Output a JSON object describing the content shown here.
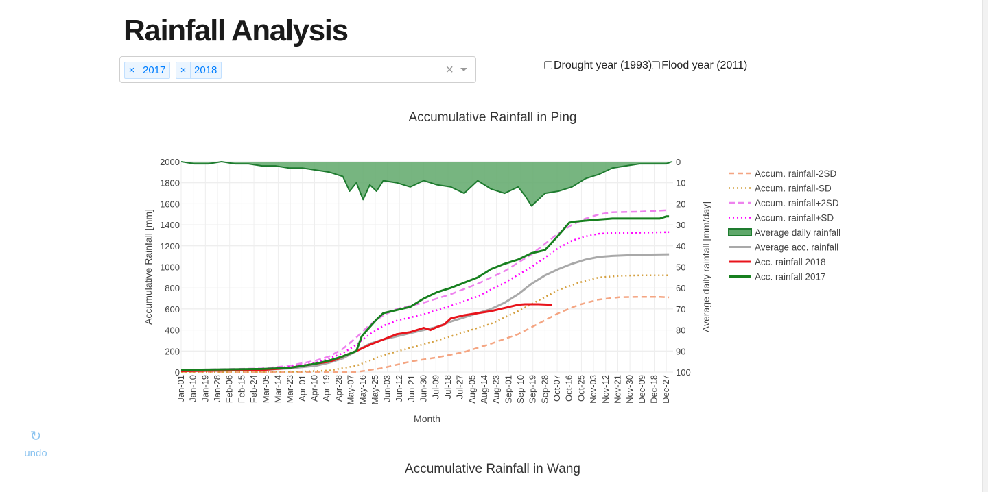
{
  "header": {
    "title": "Rainfall Analysis"
  },
  "year_select": {
    "tags": [
      {
        "remove": "×",
        "value": "2017"
      },
      {
        "remove": "×",
        "value": "2018"
      }
    ],
    "clear": "×"
  },
  "options": {
    "drought": "Drought year (1993)",
    "flood": "Flood year (2011)"
  },
  "undo": {
    "label": "undo",
    "icon": "undo-icon"
  },
  "second_chart": {
    "title": "Accumulative Rainfall in Wang"
  },
  "chart_data": {
    "type": "line",
    "title": "Accumulative Rainfall in Ping",
    "xlabel": "Month",
    "ylabel": "Accumulative Rainfall [mm]",
    "y2label": "Average daily rainfall [mm/day]",
    "ylim": [
      0,
      2000
    ],
    "y2lim": [
      100,
      0
    ],
    "y_ticks": [
      0,
      200,
      400,
      600,
      800,
      1000,
      1200,
      1400,
      1600,
      1800,
      2000
    ],
    "y2_ticks": [
      0,
      10,
      20,
      30,
      40,
      50,
      60,
      70,
      80,
      90,
      100
    ],
    "grid": true,
    "legend_position": "right",
    "x_ticks": [
      "Jan-01",
      "Jan-10",
      "Jan-19",
      "Jan-28",
      "Feb-06",
      "Feb-15",
      "Feb-24",
      "Mar-05",
      "Mar-14",
      "Mar-23",
      "Apr-01",
      "Apr-10",
      "Apr-19",
      "Apr-28",
      "May-07",
      "May-16",
      "May-25",
      "Jun-03",
      "Jun-12",
      "Jun-21",
      "Jun-30",
      "Jul-09",
      "Jul-18",
      "Jul-27",
      "Aug-05",
      "Aug-14",
      "Aug-23",
      "Sep-01",
      "Sep-10",
      "Sep-19",
      "Sep-28",
      "Oct-07",
      "Oct-16",
      "Oct-25",
      "Nov-03",
      "Nov-12",
      "Nov-21",
      "Nov-30",
      "Dec-09",
      "Dec-18",
      "Dec-27"
    ],
    "x_tick_days": [
      0,
      9,
      18,
      27,
      36,
      45,
      54,
      63,
      72,
      81,
      90,
      99,
      108,
      117,
      126,
      135,
      144,
      153,
      162,
      171,
      180,
      189,
      198,
      207,
      216,
      225,
      234,
      243,
      252,
      261,
      270,
      279,
      288,
      297,
      306,
      315,
      324,
      333,
      342,
      351,
      360
    ],
    "x_range_days": [
      0,
      365
    ],
    "series": [
      {
        "name": "Accum. rainfall-2SD",
        "color": "#f4a582",
        "dash": "8,5",
        "width": 2.5,
        "x": [
          0,
          110,
          130,
          150,
          170,
          190,
          210,
          230,
          250,
          265,
          280,
          295,
          310,
          325,
          340,
          355,
          362
        ],
        "y": [
          0,
          0,
          0,
          40,
          100,
          140,
          190,
          270,
          360,
          460,
          560,
          640,
          690,
          712,
          715,
          715,
          710
        ]
      },
      {
        "name": "Accum. rainfall-SD",
        "color": "#d4a040",
        "dash": "2,4",
        "width": 2.5,
        "x": [
          0,
          90,
          110,
          130,
          150,
          170,
          190,
          210,
          230,
          250,
          265,
          280,
          295,
          310,
          325,
          340,
          355,
          362
        ],
        "y": [
          0,
          5,
          15,
          60,
          160,
          230,
          300,
          380,
          460,
          580,
          680,
          780,
          850,
          900,
          915,
          920,
          920,
          920
        ]
      },
      {
        "name": "Accum. rainfall+2SD",
        "color": "#ee82ee",
        "dash": "9,5",
        "width": 2.5,
        "x": [
          0,
          60,
          80,
          100,
          110,
          120,
          130,
          140,
          150,
          160,
          180,
          200,
          220,
          240,
          260,
          270,
          280,
          290,
          300,
          310,
          320,
          340,
          362
        ],
        "y": [
          20,
          35,
          60,
          110,
          150,
          220,
          330,
          450,
          540,
          600,
          660,
          740,
          840,
          960,
          1120,
          1220,
          1320,
          1400,
          1460,
          1500,
          1520,
          1525,
          1540
        ]
      },
      {
        "name": "Accum. rainfall+SD",
        "color": "#ff00ff",
        "dash": "2,4",
        "width": 2.5,
        "x": [
          0,
          60,
          80,
          100,
          110,
          120,
          130,
          140,
          150,
          160,
          180,
          200,
          220,
          240,
          260,
          270,
          280,
          290,
          300,
          310,
          320,
          340,
          362
        ],
        "y": [
          15,
          30,
          50,
          90,
          130,
          180,
          260,
          360,
          440,
          490,
          550,
          630,
          720,
          850,
          1000,
          1090,
          1180,
          1250,
          1290,
          1315,
          1322,
          1325,
          1330
        ]
      },
      {
        "name": "Average daily rainfall",
        "color": "#1e7b2f",
        "fill": "#5fa86a",
        "axis": "y2",
        "width": 2,
        "x": [
          0,
          10,
          20,
          30,
          40,
          50,
          60,
          70,
          80,
          90,
          100,
          110,
          120,
          125,
          130,
          135,
          140,
          145,
          150,
          160,
          170,
          180,
          190,
          200,
          210,
          220,
          230,
          240,
          250,
          255,
          260,
          270,
          280,
          290,
          300,
          310,
          320,
          330,
          340,
          350,
          360,
          364
        ],
        "y": [
          0,
          1,
          1,
          0,
          1,
          1,
          2,
          2,
          3,
          3,
          4,
          5,
          7,
          14,
          10,
          18,
          11,
          14,
          9,
          10,
          12,
          9,
          11,
          12,
          15,
          9,
          13,
          15,
          12,
          16,
          21,
          15,
          14,
          12,
          8,
          6,
          3,
          2,
          1,
          1,
          1,
          0
        ]
      },
      {
        "name": "Average acc. rainfall",
        "color": "#a9a9a9",
        "width": 3,
        "x": [
          0,
          60,
          80,
          100,
          110,
          120,
          130,
          140,
          150,
          160,
          170,
          180,
          190,
          200,
          210,
          220,
          230,
          240,
          250,
          260,
          270,
          280,
          290,
          300,
          310,
          320,
          340,
          362
        ],
        "y": [
          10,
          20,
          35,
          60,
          90,
          130,
          200,
          270,
          310,
          340,
          370,
          400,
          430,
          480,
          520,
          560,
          600,
          660,
          740,
          840,
          920,
          980,
          1030,
          1070,
          1095,
          1105,
          1115,
          1120
        ]
      },
      {
        "name": "Acc. rainfall 2018",
        "color": "#e8141c",
        "width": 3,
        "x": [
          0,
          60,
          80,
          100,
          110,
          115,
          120,
          130,
          140,
          150,
          160,
          170,
          180,
          185,
          190,
          195,
          200,
          210,
          220,
          230,
          240,
          250,
          255,
          265,
          275
        ],
        "y": [
          10,
          20,
          40,
          80,
          100,
          120,
          150,
          200,
          260,
          310,
          360,
          380,
          420,
          400,
          430,
          450,
          510,
          540,
          560,
          580,
          610,
          640,
          645,
          645,
          640
        ]
      },
      {
        "name": "Acc. rainfall 2017",
        "color": "#17801f",
        "width": 3,
        "x": [
          0,
          60,
          80,
          100,
          110,
          120,
          130,
          134,
          138,
          145,
          150,
          160,
          170,
          180,
          190,
          200,
          210,
          220,
          230,
          240,
          250,
          260,
          270,
          280,
          288,
          292,
          300,
          310,
          320,
          340,
          355,
          360,
          362
        ],
        "y": [
          20,
          30,
          40,
          80,
          110,
          150,
          200,
          340,
          400,
          500,
          560,
          590,
          620,
          700,
          760,
          800,
          850,
          900,
          980,
          1030,
          1070,
          1130,
          1160,
          1300,
          1420,
          1430,
          1440,
          1450,
          1460,
          1460,
          1460,
          1480,
          1480
        ]
      }
    ]
  }
}
